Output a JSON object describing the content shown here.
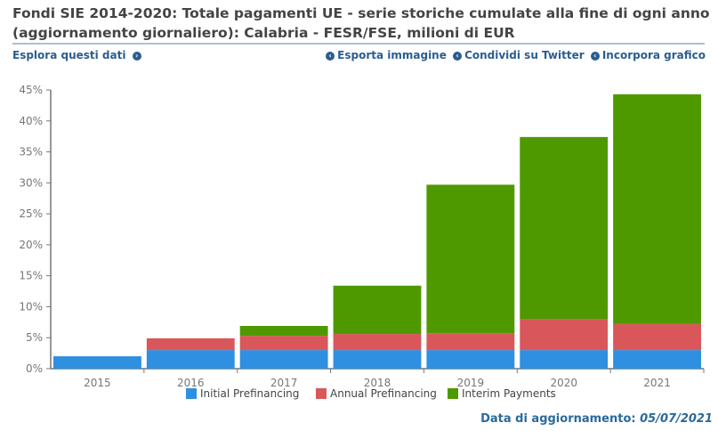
{
  "header": {
    "title": "Fondi SIE 2014-2020: Totale pagamenti UE - serie storiche cumulate alla fine di ogni anno (aggiornamento giornaliero): Calabria - FESR/FSE, milioni di EUR",
    "explore_label": "Esplora questi dati",
    "export_label": "Esporta immagine",
    "share_label": "Condividi su Twitter",
    "embed_label": "Incorpora grafico"
  },
  "footer": {
    "update_label": "Data di aggiornamento:",
    "update_date": "05/07/2021"
  },
  "chart_data": {
    "type": "bar",
    "stacked": true,
    "title": "",
    "xlabel": "",
    "ylabel": "",
    "ylim": [
      0,
      45
    ],
    "yticks": [
      "0%",
      "5%",
      "10%",
      "15%",
      "20%",
      "25%",
      "30%",
      "35%",
      "40%",
      "45%"
    ],
    "categories": [
      "2015",
      "2016",
      "2017",
      "2018",
      "2019",
      "2020",
      "2021"
    ],
    "series": [
      {
        "name": "Initial Prefinancing",
        "color": "#2f8fe0",
        "values": [
          2.0,
          3.0,
          3.0,
          3.0,
          3.0,
          3.0,
          3.0
        ]
      },
      {
        "name": "Annual Prefinancing",
        "color": "#d9575b",
        "values": [
          0,
          1.9,
          2.3,
          2.6,
          2.7,
          5.0,
          4.2
        ]
      },
      {
        "name": "Interim Payments",
        "color": "#4f9900",
        "values": [
          0,
          0,
          1.6,
          7.8,
          24.0,
          29.4,
          37.1
        ]
      }
    ],
    "legend_position": "bottom",
    "grid": false
  }
}
